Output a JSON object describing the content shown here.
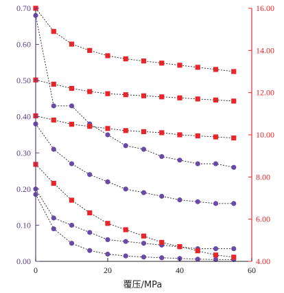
{
  "chart_data": {
    "type": "scatter",
    "title": "",
    "xlabel": "覆压/MPa",
    "ylabel_left": "",
    "ylabel_right": "",
    "xlim": [
      0,
      60
    ],
    "ylim_left": [
      0,
      0.7
    ],
    "ylim_right": [
      4,
      16
    ],
    "x_ticks": [
      "0",
      "20",
      "40",
      "60"
    ],
    "y_left_ticks": [
      "0.00",
      "0.10",
      "0.20",
      "0.30",
      "0.40",
      "0.50",
      "0.60",
      "0.70"
    ],
    "y_right_ticks": [
      "4.00",
      "6.00",
      "8.00",
      "10.00",
      "12.00",
      "14.00",
      "16.00"
    ],
    "grid": false,
    "x": [
      0,
      5,
      10,
      15,
      20,
      25,
      30,
      35,
      40,
      45,
      50,
      55
    ],
    "colors": {
      "left_axis": "#5a3d8a",
      "left_marker": "#6a4aa8",
      "right_axis": "#e8262a",
      "right_marker": "#e8262a",
      "line": "#333333"
    },
    "series_left": [
      {
        "marker": "circle",
        "values": [
          0.68,
          0.43,
          0.43,
          0.38,
          0.35,
          0.32,
          0.31,
          0.29,
          0.28,
          0.27,
          0.27,
          0.26
        ]
      },
      {
        "marker": "circle",
        "values": [
          0.38,
          0.31,
          0.27,
          0.24,
          0.22,
          0.2,
          0.19,
          0.18,
          0.17,
          0.165,
          0.16,
          0.16
        ]
      },
      {
        "marker": "circle",
        "values": [
          0.2,
          0.12,
          0.1,
          0.08,
          0.06,
          0.055,
          0.05,
          0.045,
          0.04,
          0.035,
          0.035,
          0.035
        ]
      },
      {
        "marker": "circle",
        "values": [
          0.185,
          0.09,
          0.05,
          0.03,
          0.02,
          0.015,
          0.012,
          0.01,
          0.008,
          0.006,
          0.005,
          0.005
        ]
      }
    ],
    "series_right": [
      {
        "marker": "square",
        "values": [
          16,
          14.9,
          14.3,
          14,
          13.75,
          13.6,
          13.5,
          13.4,
          13.3,
          13.2,
          13.1,
          13
        ]
      },
      {
        "marker": "square",
        "values": [
          12.6,
          12.4,
          12.2,
          12.05,
          11.95,
          11.9,
          11.85,
          11.8,
          11.75,
          11.7,
          11.65,
          11.6
        ]
      },
      {
        "marker": "square",
        "values": [
          10.9,
          10.7,
          10.5,
          10.4,
          10.3,
          10.2,
          10.15,
          10.1,
          10,
          9.95,
          9.9,
          9.85
        ]
      },
      {
        "marker": "square",
        "values": [
          8.6,
          7.7,
          6.9,
          6.3,
          5.8,
          5.5,
          5.2,
          4.9,
          4.7,
          4.5,
          4.3,
          4.2
        ]
      }
    ]
  }
}
